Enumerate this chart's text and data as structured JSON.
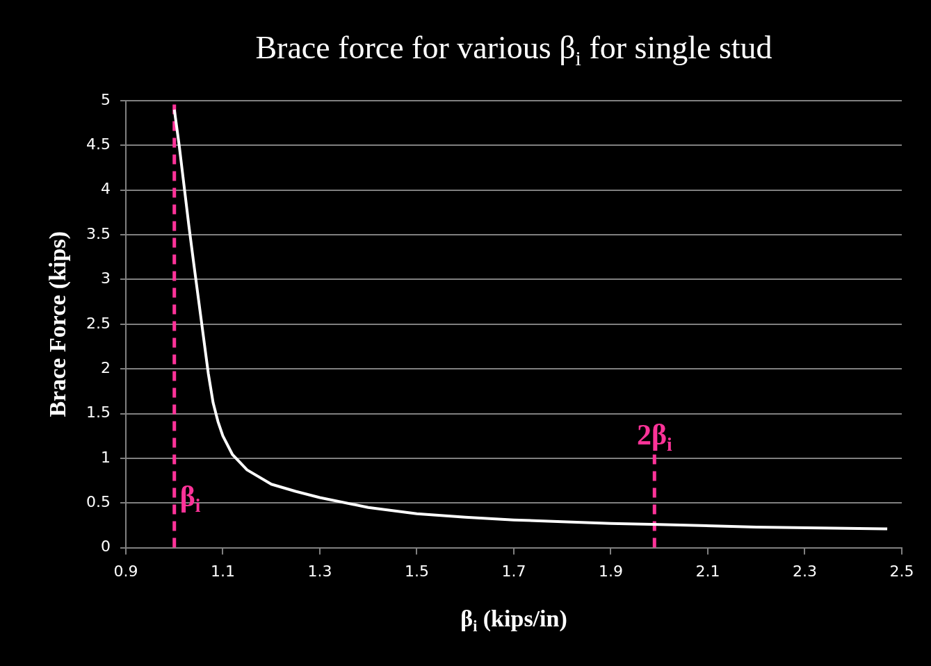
{
  "chart_data": {
    "type": "line",
    "title": "Brace force for various β$_{i}$ for single stud",
    "xlabel": "β$_{i}$ (kips/in)",
    "ylabel": "Brace Force (kips)",
    "xlim": [
      0.9,
      2.5
    ],
    "xticks": [
      0.9,
      1.1,
      1.3,
      1.5,
      1.7,
      1.9,
      2.1,
      2.3,
      2.5
    ],
    "ylim": [
      0,
      5
    ],
    "yticks": [
      0,
      0.5,
      1,
      1.5,
      2,
      2.5,
      3,
      3.5,
      4,
      4.5,
      5
    ],
    "grid": "y",
    "legend": false,
    "marker": "none",
    "series": [
      {
        "color": "#ffffff",
        "line_style": "solid",
        "x": [
          1.0,
          1.01,
          1.02,
          1.03,
          1.04,
          1.05,
          1.06,
          1.07,
          1.08,
          1.09,
          1.1,
          1.12,
          1.15,
          1.2,
          1.25,
          1.3,
          1.4,
          1.5,
          1.6,
          1.7,
          1.8,
          1.9,
          2.0,
          2.2,
          2.47
        ],
        "values": [
          4.9,
          4.5,
          4.05,
          3.6,
          3.18,
          2.77,
          2.36,
          1.95,
          1.62,
          1.41,
          1.25,
          1.04,
          0.87,
          0.71,
          0.63,
          0.56,
          0.45,
          0.38,
          0.34,
          0.31,
          0.29,
          0.27,
          0.26,
          0.23,
          0.21
        ]
      },
      {
        "color": "#ff3399",
        "line_style": "dashed",
        "x": [
          1.0,
          1.0
        ],
        "values": [
          0,
          5
        ]
      },
      {
        "color": "#ff3399",
        "line_style": "dashed",
        "x": [
          1.99,
          1.99
        ],
        "values": [
          0,
          1.05
        ]
      }
    ],
    "annotations": [
      {
        "text": "β$_{i}$",
        "x": 1.0,
        "y": 0.55
      },
      {
        "text": "2β$_{i}$",
        "x": 1.99,
        "y": 1.05
      }
    ]
  }
}
